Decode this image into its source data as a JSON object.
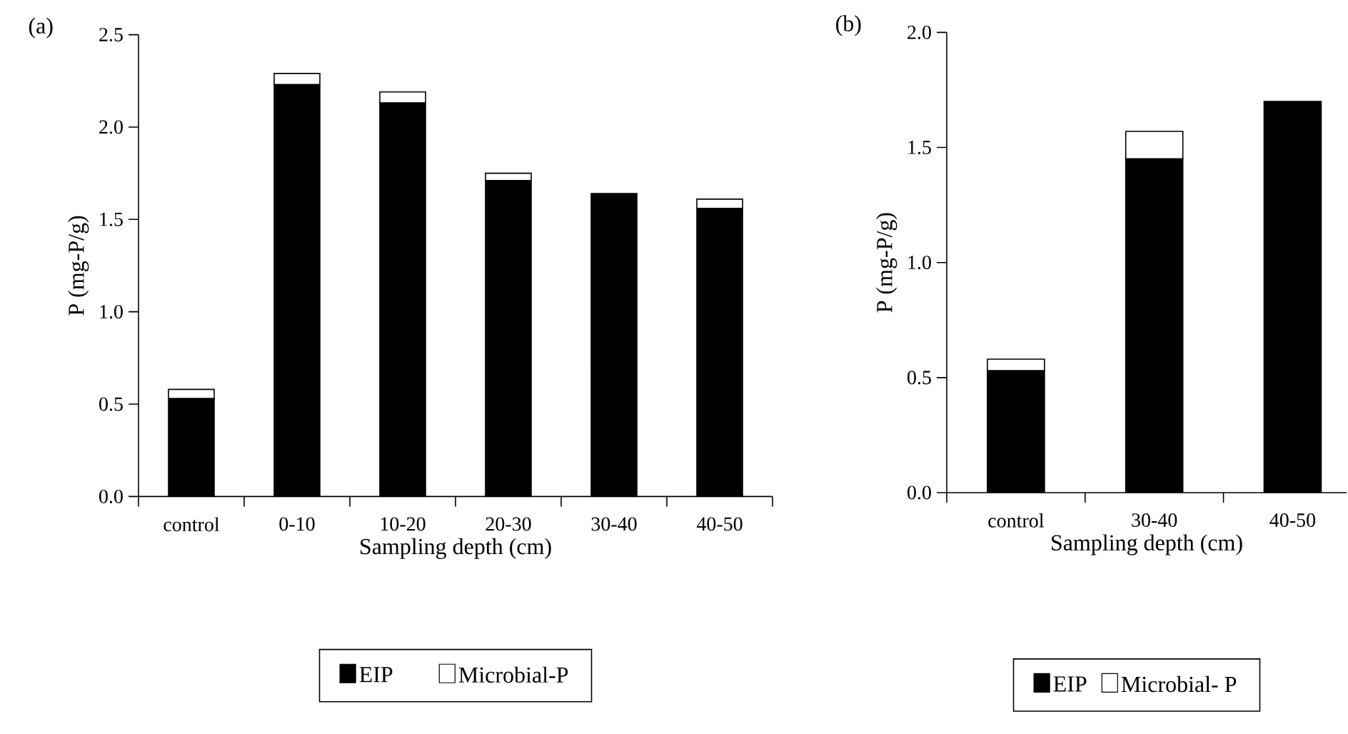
{
  "chart_data": [
    {
      "type": "bar",
      "stacked": true,
      "title": "(a)",
      "xlabel": "Sampling depth (cm)",
      "ylabel": "P (mg-P/g)",
      "categories": [
        "control",
        "0-10",
        "10-20",
        "20-30",
        "30-40",
        "40-50"
      ],
      "series": [
        {
          "name": "EIP",
          "color": "#000000",
          "values": [
            0.53,
            2.23,
            2.13,
            1.71,
            1.64,
            1.56
          ]
        },
        {
          "name": "Microbial-P",
          "color": "#ffffff",
          "values": [
            0.05,
            0.06,
            0.06,
            0.04,
            0,
            0.05
          ]
        }
      ],
      "ylim": [
        0,
        2.5
      ],
      "yticks": [
        {
          "value": 0,
          "label": "0.0"
        },
        {
          "value": 0.5,
          "label": "0.5"
        },
        {
          "value": 1,
          "label": "1.0"
        },
        {
          "value": 1.5,
          "label": "1.5"
        },
        {
          "value": 2,
          "label": "2.0"
        },
        {
          "value": 2.5,
          "label": "2.5"
        }
      ],
      "legend": "bottom",
      "grid": false
    },
    {
      "type": "bar",
      "stacked": true,
      "title": "(b)",
      "xlabel": "Sampling depth (cm)",
      "ylabel": "P (mg-P/g)",
      "categories": [
        "control",
        "30-40",
        "40-50"
      ],
      "series": [
        {
          "name": "EIP",
          "color": "#000000",
          "values": [
            0.53,
            1.45,
            1.7
          ]
        },
        {
          "name": "Microbial- P",
          "color": "#ffffff",
          "values": [
            0.05,
            0.12,
            0
          ]
        }
      ],
      "ylim": [
        0,
        2
      ],
      "yticks": [
        {
          "value": 0,
          "label": "0.0"
        },
        {
          "value": 0.5,
          "label": "0.5"
        },
        {
          "value": 1,
          "label": "1.0"
        },
        {
          "value": 1.5,
          "label": "1.5"
        },
        {
          "value": 2,
          "label": "2.0"
        }
      ],
      "legend": "bottom",
      "grid": false
    }
  ]
}
